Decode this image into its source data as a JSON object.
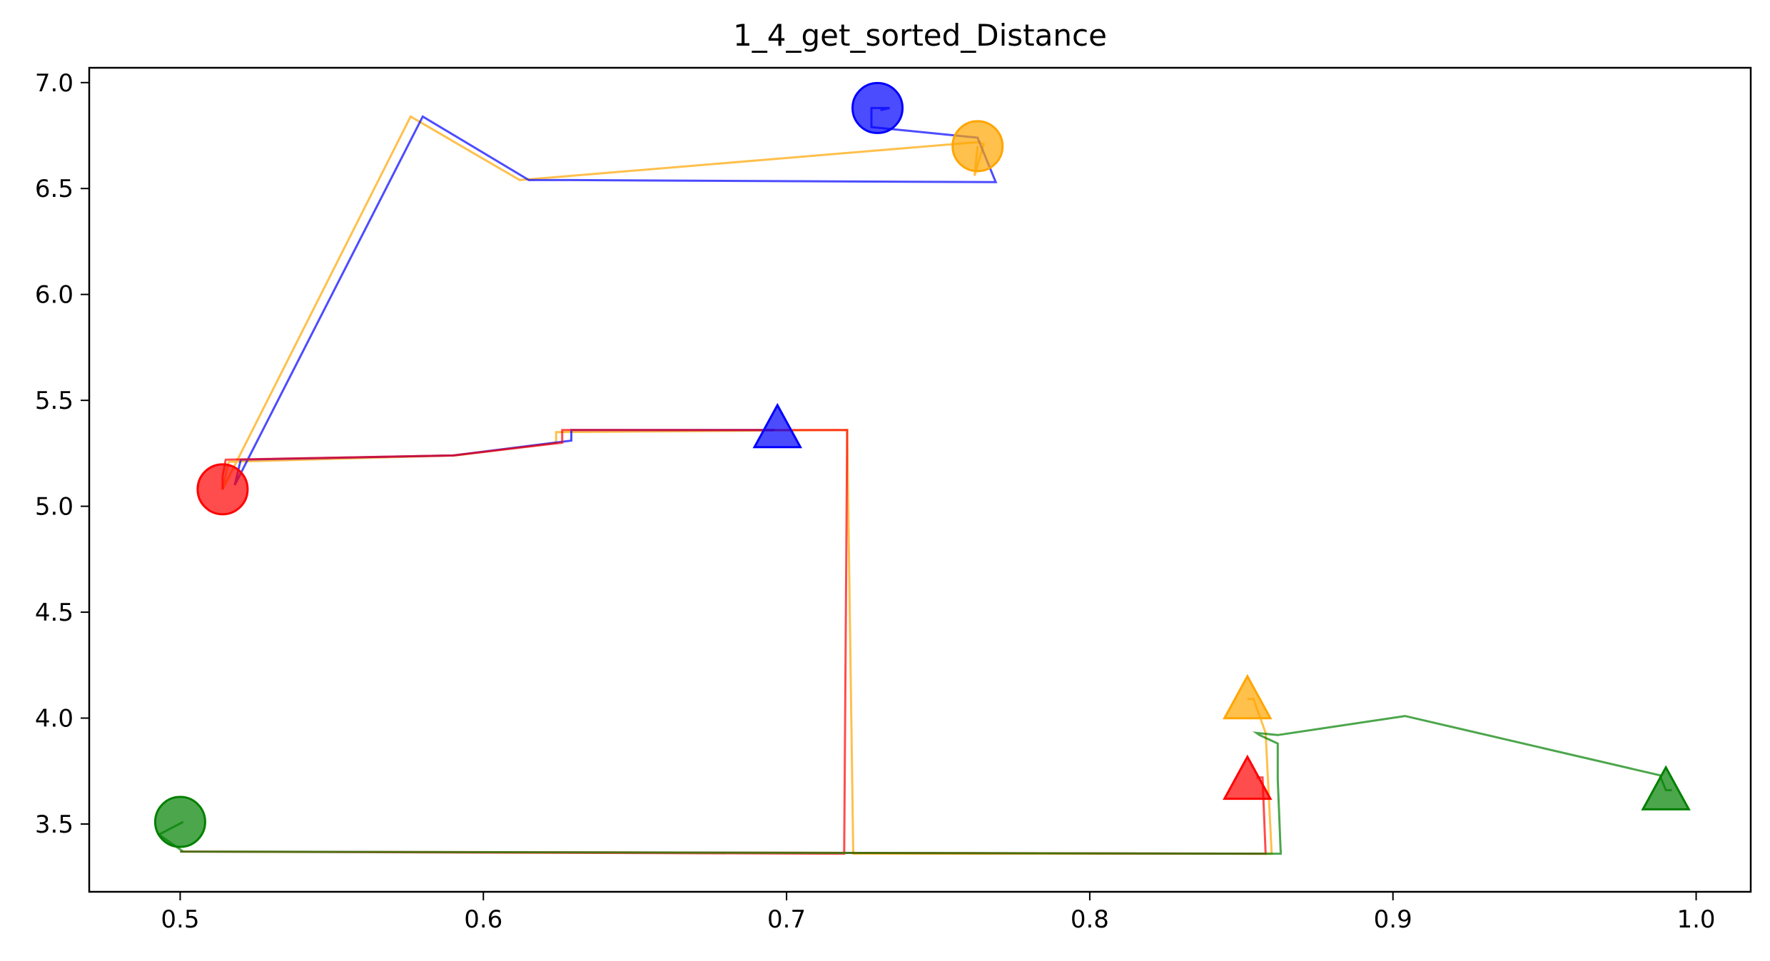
{
  "chart_data": {
    "type": "line",
    "title": "1_4_get_sorted_Distance",
    "xlabel": "",
    "ylabel": "",
    "xlim": [
      0.47,
      1.018
    ],
    "ylim": [
      3.18,
      7.07
    ],
    "xticks": [
      0.5,
      0.6,
      0.7,
      0.8,
      0.9,
      1.0
    ],
    "xtick_labels": [
      "0.5",
      "0.6",
      "0.7",
      "0.8",
      "0.9",
      "1.0"
    ],
    "yticks": [
      3.5,
      4.0,
      4.5,
      5.0,
      5.5,
      6.0,
      6.5,
      7.0
    ],
    "ytick_labels": [
      "3.5",
      "4.0",
      "4.5",
      "5.0",
      "5.5",
      "6.0",
      "6.5",
      "7.0"
    ],
    "grid": false,
    "colors": {
      "red": "#ff0000",
      "orange": "#ffa500",
      "blue": "#0000ff",
      "green": "#008000"
    },
    "series": [
      {
        "color": "#ffa500",
        "x": [
          0.763,
          0.762,
          0.765,
          0.763,
          0.764,
          0.612,
          0.576,
          0.514,
          0.516,
          0.591,
          0.624,
          0.624,
          0.72,
          0.722,
          0.86,
          0.858,
          0.854,
          0.852
        ],
        "y": [
          6.7,
          6.56,
          6.71,
          6.72,
          6.72,
          6.54,
          6.84,
          5.08,
          5.21,
          5.24,
          5.3,
          5.35,
          5.36,
          3.36,
          3.36,
          3.93,
          4.09,
          4.09
        ]
      },
      {
        "color": "#0000ff",
        "x": [
          0.731,
          0.734,
          0.734,
          0.728,
          0.728,
          0.763,
          0.769,
          0.629,
          0.615,
          0.58,
          0.518,
          0.52,
          0.59,
          0.629,
          0.629,
          0.696
        ],
        "y": [
          6.87,
          6.88,
          6.88,
          6.88,
          6.79,
          6.74,
          6.53,
          6.54,
          6.54,
          6.84,
          5.1,
          5.22,
          5.24,
          5.31,
          5.36,
          5.36
        ]
      },
      {
        "color": "#ff0000",
        "x": [
          0.514,
          0.514,
          0.515,
          0.59,
          0.626,
          0.626,
          0.72,
          0.72,
          0.719,
          0.501,
          0.5,
          0.858,
          0.857,
          0.855,
          0.855
        ],
        "y": [
          5.08,
          5.14,
          5.22,
          5.24,
          5.3,
          5.36,
          5.36,
          5.36,
          3.36,
          3.37,
          3.37,
          3.36,
          3.72,
          3.72,
          3.72
        ]
      },
      {
        "color": "#008000",
        "x": [
          0.501,
          0.493,
          0.501,
          0.5,
          0.863,
          0.862,
          0.862,
          0.856,
          0.855,
          0.862,
          0.904,
          0.988,
          0.99,
          0.992
        ],
        "y": [
          3.51,
          3.45,
          3.37,
          3.37,
          3.36,
          3.71,
          3.88,
          3.92,
          3.93,
          3.92,
          4.01,
          3.73,
          3.66,
          3.66
        ]
      }
    ],
    "markers": [
      {
        "shape": "circle",
        "color": "#0000ff",
        "x": 0.73,
        "y": 6.88
      },
      {
        "shape": "circle",
        "color": "#ffa500",
        "x": 0.763,
        "y": 6.7
      },
      {
        "shape": "circle",
        "color": "#ff0000",
        "x": 0.514,
        "y": 5.08
      },
      {
        "shape": "circle",
        "color": "#008000",
        "x": 0.5,
        "y": 3.51
      },
      {
        "shape": "triangle",
        "color": "#0000ff",
        "x": 0.697,
        "y": 5.35
      },
      {
        "shape": "triangle",
        "color": "#ffa500",
        "x": 0.852,
        "y": 4.07
      },
      {
        "shape": "triangle",
        "color": "#ff0000",
        "x": 0.852,
        "y": 3.69
      },
      {
        "shape": "triangle",
        "color": "#008000",
        "x": 0.99,
        "y": 3.64
      }
    ]
  }
}
